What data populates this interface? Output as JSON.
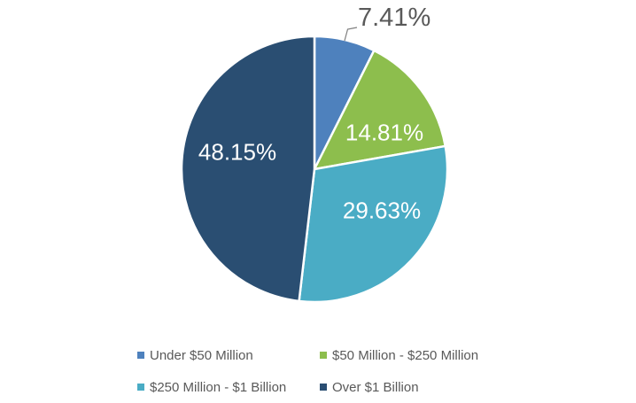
{
  "chart_data": {
    "type": "pie",
    "title": "",
    "categories": [
      "Under $50 Million",
      "$50 Million - $250 Million",
      "$250 Million - $1 Billion",
      "Over $1 Billion"
    ],
    "values": [
      7.41,
      14.81,
      29.63,
      48.15
    ],
    "labels": [
      "7.41%",
      "14.81%",
      "29.63%",
      "48.15%"
    ],
    "colors": [
      "#4E81BD",
      "#8DBE4D",
      "#4AACC5",
      "#2A4E72"
    ],
    "start_angle_deg": 0,
    "direction": "clockwise",
    "legend_position": "bottom",
    "label_style": {
      "inside_color": "#FFFFFF",
      "outside_color": "#595959",
      "leader_line_color": "#7F7F7F"
    },
    "background_color": "#FFFFFF"
  }
}
